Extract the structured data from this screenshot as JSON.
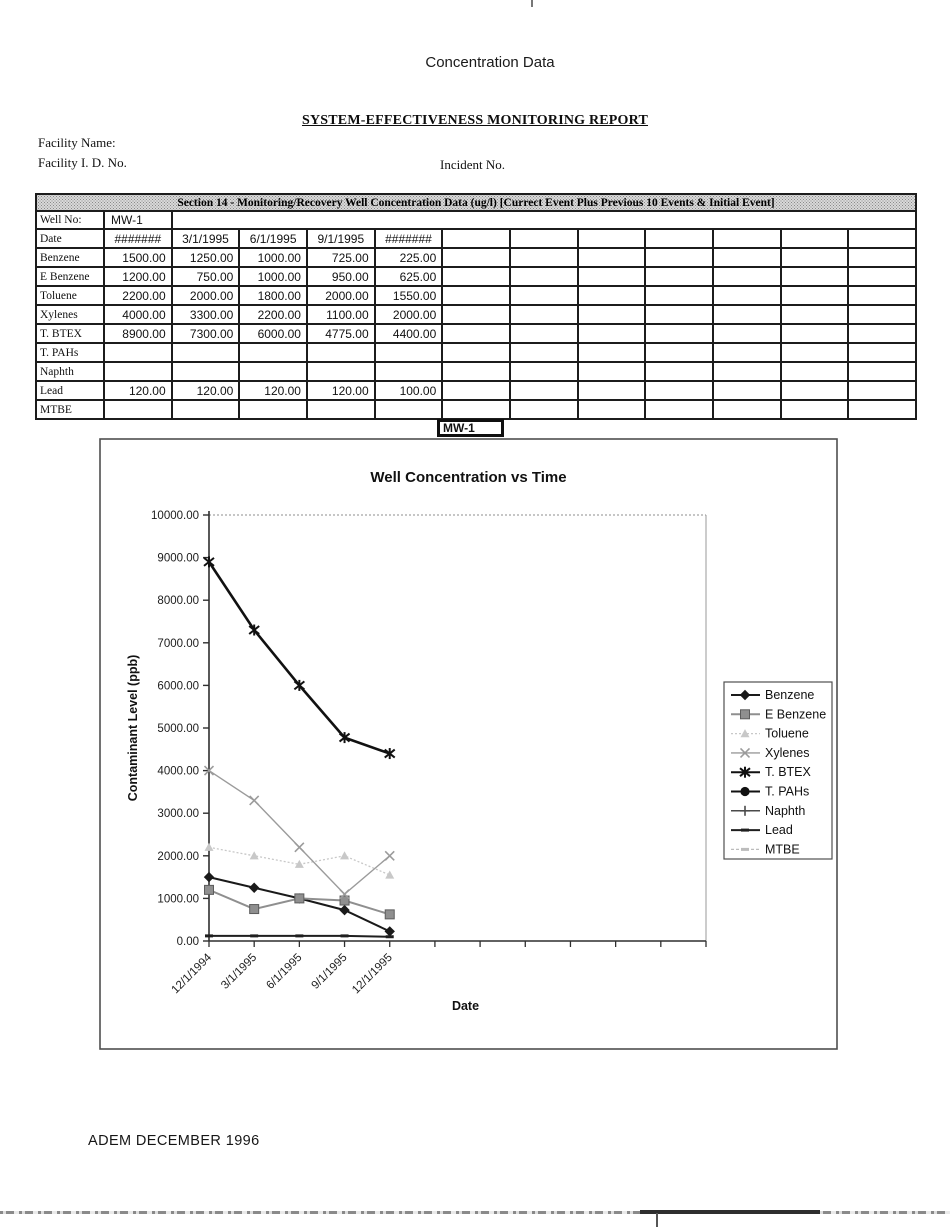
{
  "page": {
    "header_label": "Concentration Data",
    "report_title": "SYSTEM-EFFECTIVENESS MONITORING REPORT",
    "facility_name_label": "Facility Name:",
    "facility_id_label": "Facility I. D. No.",
    "incident_label": "Incident No.",
    "footer": "ADEM DECEMBER 1996"
  },
  "table": {
    "section_title": "Section 14 - Monitoring/Recovery Well Concentration Data (ug/l) [Currect Event Plus Previous 10 Events & Initial Event]",
    "well_no_label": "Well No:",
    "well_no_value": "MW-1",
    "date_label": "Date",
    "num_data_columns": 12,
    "date_values": [
      "#######",
      "3/1/1995",
      "6/1/1995",
      "9/1/1995",
      "#######",
      "",
      "",
      "",
      "",
      "",
      "",
      ""
    ],
    "rows": [
      {
        "label": "Benzene",
        "values": [
          "1500.00",
          "1250.00",
          "1000.00",
          "725.00",
          "225.00",
          "",
          "",
          "",
          "",
          "",
          "",
          ""
        ]
      },
      {
        "label": "E Benzene",
        "values": [
          "1200.00",
          "750.00",
          "1000.00",
          "950.00",
          "625.00",
          "",
          "",
          "",
          "",
          "",
          "",
          ""
        ]
      },
      {
        "label": "Toluene",
        "values": [
          "2200.00",
          "2000.00",
          "1800.00",
          "2000.00",
          "1550.00",
          "",
          "",
          "",
          "",
          "",
          "",
          ""
        ]
      },
      {
        "label": "Xylenes",
        "values": [
          "4000.00",
          "3300.00",
          "2200.00",
          "1100.00",
          "2000.00",
          "",
          "",
          "",
          "",
          "",
          "",
          ""
        ]
      },
      {
        "label": "T. BTEX",
        "values": [
          "8900.00",
          "7300.00",
          "6000.00",
          "4775.00",
          "4400.00",
          "",
          "",
          "",
          "",
          "",
          "",
          ""
        ]
      },
      {
        "label": "T. PAHs",
        "values": [
          "",
          "",
          "",
          "",
          "",
          "",
          "",
          "",
          "",
          "",
          "",
          ""
        ]
      },
      {
        "label": "Naphth",
        "values": [
          "",
          "",
          "",
          "",
          "",
          "",
          "",
          "",
          "",
          "",
          "",
          ""
        ]
      },
      {
        "label": "Lead",
        "values": [
          "120.00",
          "120.00",
          "120.00",
          "120.00",
          "100.00",
          "",
          "",
          "",
          "",
          "",
          "",
          ""
        ]
      },
      {
        "label": "MTBE",
        "values": [
          "",
          "",
          "",
          "",
          "",
          "",
          "",
          "",
          "",
          "",
          "",
          ""
        ]
      }
    ]
  },
  "well_box": {
    "label": "MW-1"
  },
  "chart_data": {
    "type": "line",
    "title": "Well Concentration vs Time",
    "xlabel": "Date",
    "ylabel": "Contaminant Level (ppb)",
    "ylim": [
      0,
      10000
    ],
    "ytick_step": 1000,
    "ytick_format_decimals": 2,
    "x_slots_total": 12,
    "categories": [
      "12/1/1994",
      "3/1/1995",
      "6/1/1995",
      "9/1/1995",
      "12/1/1995"
    ],
    "grid": false,
    "legend_position": "right",
    "series": [
      {
        "name": "Benzene",
        "marker": "diamond",
        "color": "#1a1a1a",
        "line_width": 2,
        "dash": "",
        "values": [
          1500,
          1250,
          1000,
          725,
          225
        ]
      },
      {
        "name": "E Benzene",
        "marker": "square",
        "color": "#8f8f8f",
        "line_width": 2,
        "dash": "",
        "values": [
          1200,
          750,
          1000,
          950,
          625
        ]
      },
      {
        "name": "Toluene",
        "marker": "triangle",
        "color": "#c8c8c8",
        "line_width": 1.3,
        "dash": "2 2",
        "values": [
          2200,
          2000,
          1800,
          2000,
          1550
        ]
      },
      {
        "name": "Xylenes",
        "marker": "x",
        "color": "#9b9b9b",
        "line_width": 1.4,
        "dash": "",
        "values": [
          4000,
          3300,
          2200,
          1100,
          2000
        ]
      },
      {
        "name": "T. BTEX",
        "marker": "asterisk",
        "color": "#111111",
        "line_width": 2.6,
        "dash": "",
        "values": [
          8900,
          7300,
          6000,
          4775,
          4400
        ]
      },
      {
        "name": "T. PAHs",
        "marker": "circle",
        "color": "#111111",
        "line_width": 2,
        "dash": "",
        "values": []
      },
      {
        "name": "Naphth",
        "marker": "plus",
        "color": "#4a4a4a",
        "line_width": 1.5,
        "dash": "",
        "values": []
      },
      {
        "name": "Lead",
        "marker": "dash",
        "color": "#1f1f1f",
        "line_width": 2,
        "dash": "",
        "values": [
          120,
          120,
          120,
          120,
          100
        ]
      },
      {
        "name": "MTBE",
        "marker": "dash",
        "color": "#bcbcbc",
        "line_width": 1.3,
        "dash": "3 2",
        "values": []
      }
    ]
  }
}
